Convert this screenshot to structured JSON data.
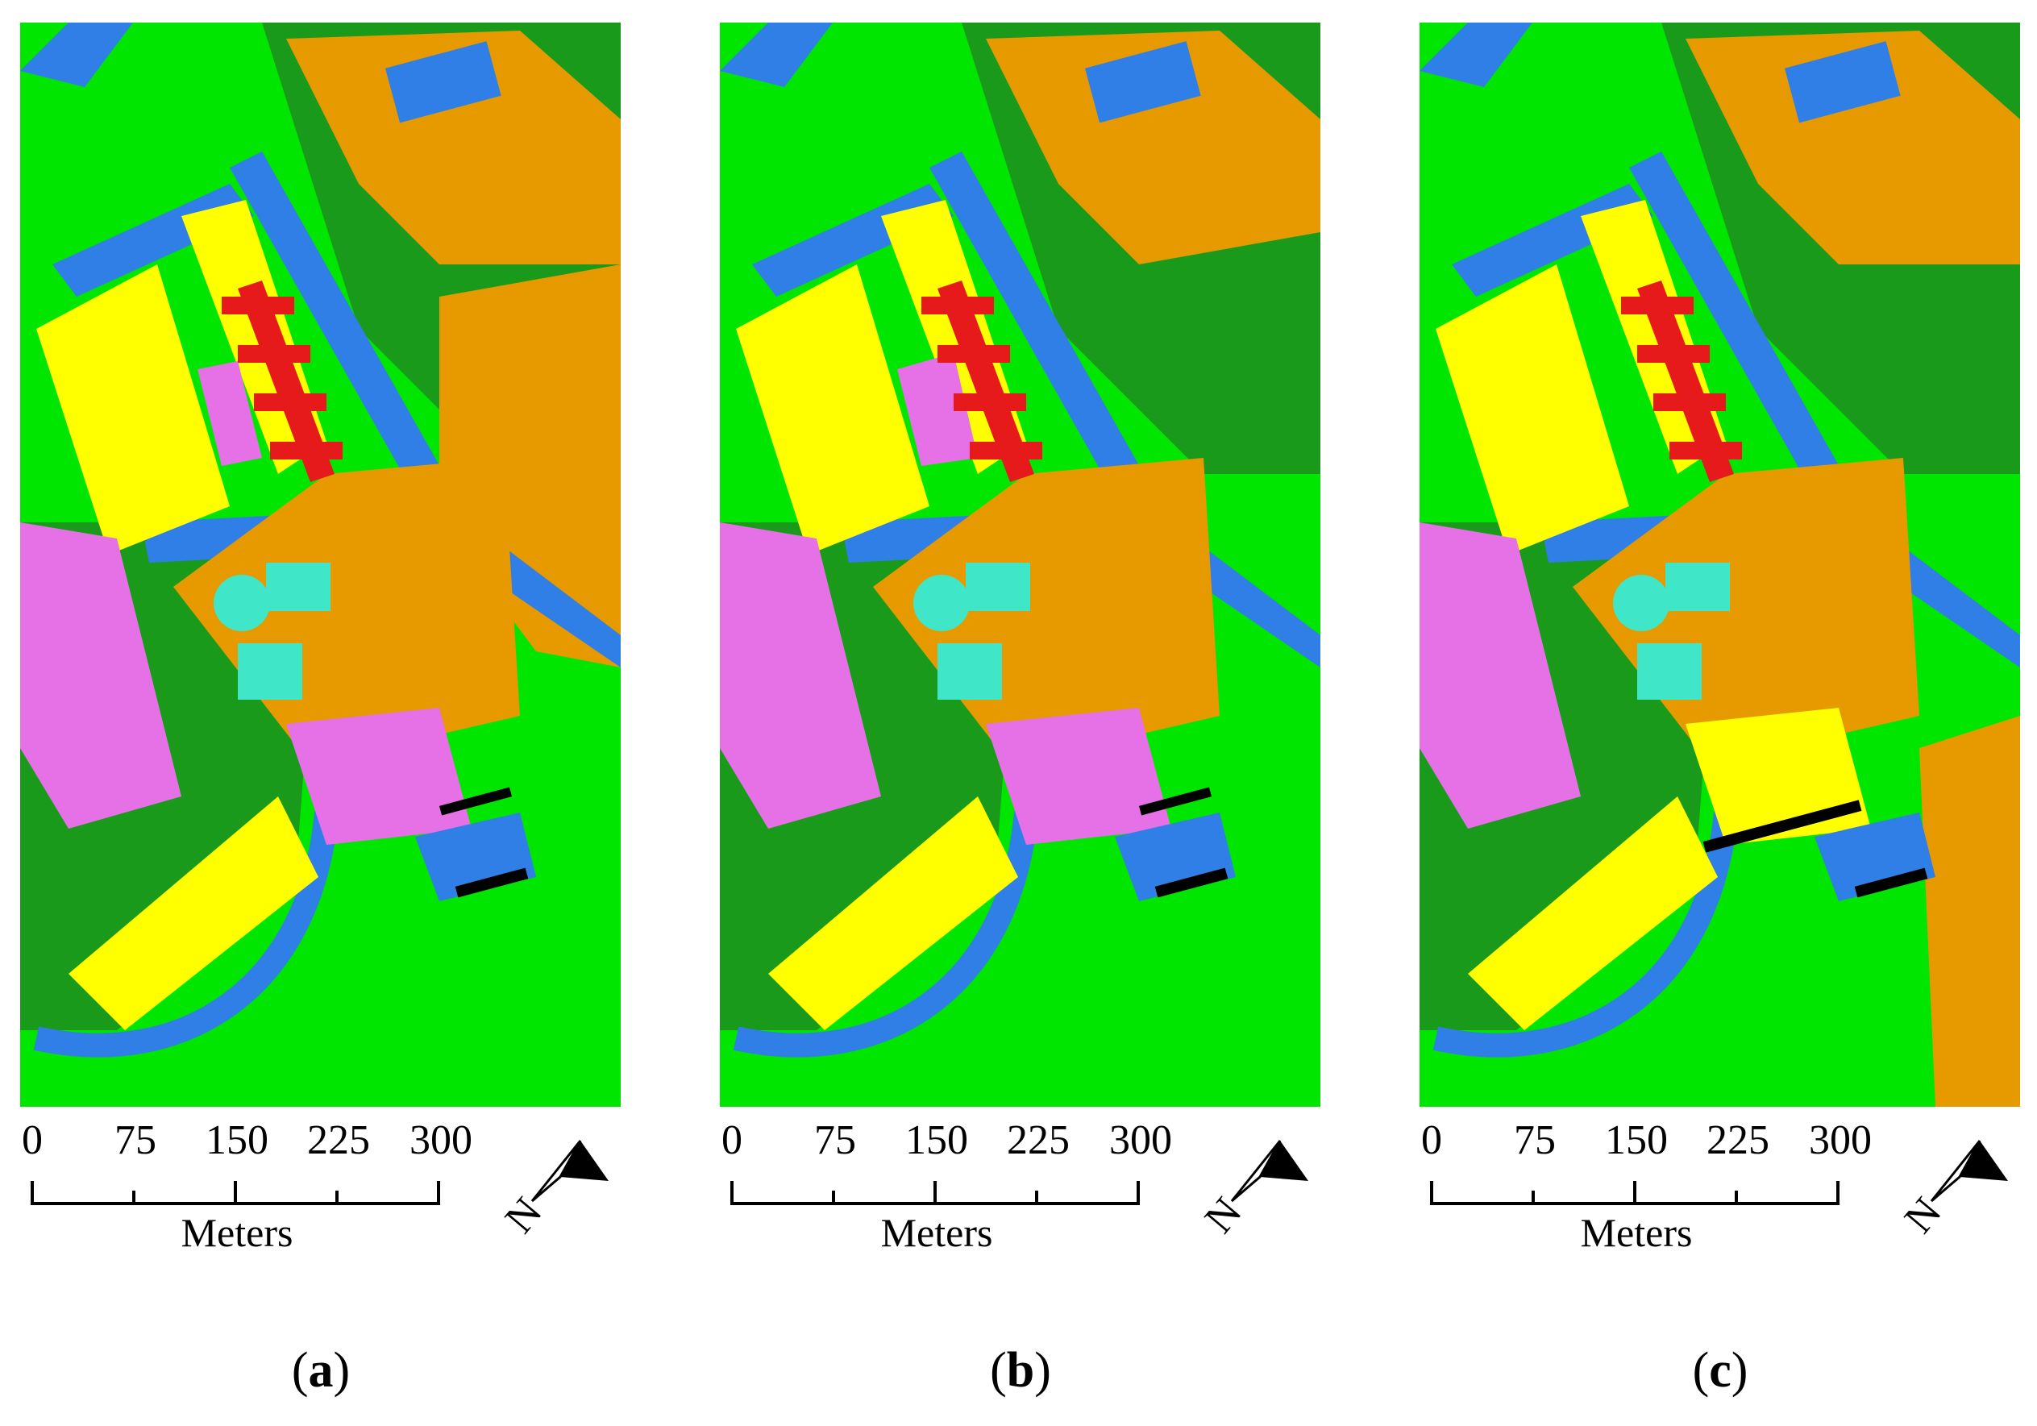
{
  "colors": {
    "grass": "#00e600",
    "trees": "#1a9a1a",
    "road": "#2f7fe6",
    "bare_soil": "#e69a00",
    "gravel": "#ffff00",
    "metal": "#e670e6",
    "brick": "#e61a1a",
    "shadow": "#000000",
    "bitumen": "#3fe6c8"
  },
  "scale": {
    "ticks": [
      "0",
      "75",
      "150",
      "225",
      "300"
    ],
    "unit": "Meters"
  },
  "north_label": "N",
  "panels": [
    {
      "id": "a",
      "open": "(",
      "letter": "a",
      "close": ")"
    },
    {
      "id": "b",
      "open": "(",
      "letter": "b",
      "close": ")"
    },
    {
      "id": "c",
      "open": "(",
      "letter": "c",
      "close": ")"
    }
  ]
}
